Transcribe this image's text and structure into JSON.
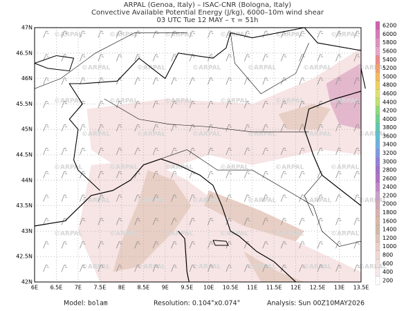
{
  "header": {
    "line1": "ARPAL (Genoa, Italy)  –  ISAC-CNR (Bologna, Italy)",
    "line2": "Convective Available Potential Energy (J/kg), 6000–10m wind shear",
    "line3": "03 UTC Tue 12 MAY  –  τ = 51h"
  },
  "map": {
    "xticks": [
      "6E",
      "6.5E",
      "7E",
      "7.5E",
      "8E",
      "8.5E",
      "9E",
      "9.5E",
      "10E",
      "10.5E",
      "11E",
      "11.5E",
      "12E",
      "12.5E",
      "13E",
      "13.5E"
    ],
    "yticks": [
      "47N",
      "46.5N",
      "46N",
      "45.5N",
      "45N",
      "44.5N",
      "44N",
      "43.5N",
      "43N",
      "42.5N",
      "42N"
    ],
    "watermark": "©ARPAL"
  },
  "colorbar": {
    "levels": [
      6200,
      6000,
      5800,
      5600,
      5400,
      5200,
      5000,
      4800,
      4600,
      4400,
      4200,
      4000,
      3800,
      3600,
      3400,
      3200,
      3000,
      2800,
      2600,
      2400,
      2200,
      2000,
      1800,
      1600,
      1400,
      1200,
      1000,
      800,
      600,
      400,
      200
    ],
    "colors": [
      "#d05fb0",
      "#d878b8",
      "#e090c0",
      "#e6a6c8",
      "#ec8a8a",
      "#f0a070",
      "#f4b860",
      "#f0d060",
      "#e0e070",
      "#c0e070",
      "#90d880",
      "#70d090",
      "#60c8b0",
      "#60c0d0",
      "#70b0e0",
      "#8098e0",
      "#9080d8",
      "#a070c8",
      "#b070c0",
      "#c088c8",
      "#c8a0c8",
      "#d0a8b8",
      "#d8b0b0",
      "#d8b8a8",
      "#d0b8a8",
      "#e0c4b8",
      "#ecd0c8",
      "#f0d8d4",
      "#f4e0e0",
      "#f8eaea",
      "#ffffff"
    ]
  },
  "footer": {
    "model_label": "Model:",
    "model": "bolam",
    "resolution": "Resolution: 0.104°x0.074°",
    "analysis": "Analysis: Sun 00Z10MAY2026"
  }
}
